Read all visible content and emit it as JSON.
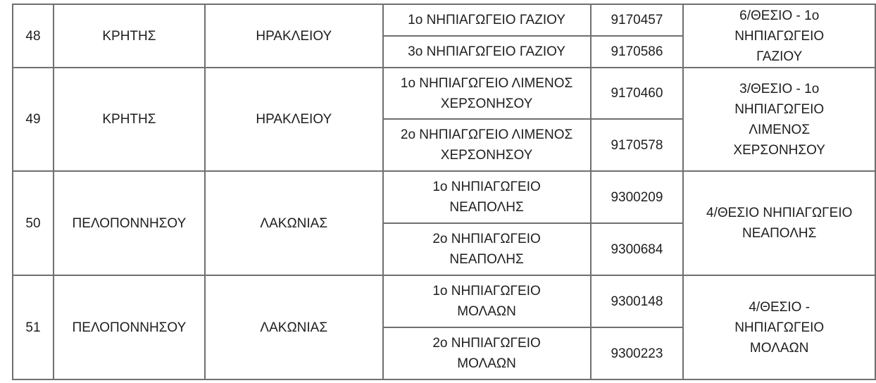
{
  "rows": [
    {
      "no": "48",
      "region": "ΚΡΗΤΗΣ",
      "prefecture": "ΗΡΑΚΛΕΙΟΥ",
      "schools": [
        {
          "name": "1ο ΝΗΠΙΑΓΩΓΕΙΟ ΓΑΖΙΟΥ",
          "code": "9170457"
        },
        {
          "name": "3ο ΝΗΠΙΑΓΩΓΕΙΟ ΓΑΖΙΟΥ",
          "code": "9170586"
        }
      ],
      "result": "6/ΘΕΣΙΟ - 1ο ΝΗΠΙΑΓΩΓΕΙΟ ΓΑΖΙΟΥ"
    },
    {
      "no": "49",
      "region": "ΚΡΗΤΗΣ",
      "prefecture": "ΗΡΑΚΛΕΙΟΥ",
      "schools": [
        {
          "name": "1ο ΝΗΠΙΑΓΩΓΕΙΟ ΛΙΜΕΝΟΣ ΧΕΡΣΟΝΗΣΟΥ",
          "code": "9170460"
        },
        {
          "name": "2ο ΝΗΠΙΑΓΩΓΕΙΟ ΛΙΜΕΝΟΣ ΧΕΡΣΟΝΗΣΟΥ",
          "code": "9170578"
        }
      ],
      "result": "3/ΘΕΣΙΟ - 1ο ΝΗΠΙΑΓΩΓΕΙΟ ΛΙΜΕΝΟΣ ΧΕΡΣΟΝΗΣΟΥ"
    },
    {
      "no": "50",
      "region": "ΠΕΛΟΠΟΝΝΗΣΟΥ",
      "prefecture": "ΛΑΚΩΝΙΑΣ",
      "schools": [
        {
          "name": "1ο ΝΗΠΙΑΓΩΓΕΙΟ ΝΕΑΠΟΛΗΣ",
          "code": "9300209"
        },
        {
          "name": "2ο ΝΗΠΙΑΓΩΓΕΙΟ ΝΕΑΠΟΛΗΣ",
          "code": "9300684"
        }
      ],
      "result": "4/ΘΕΣΙΟ ΝΗΠΙΑΓΩΓΕΙΟ ΝΕΑΠΟΛΗΣ"
    },
    {
      "no": "51",
      "region": "ΠΕΛΟΠΟΝΝΗΣΟΥ",
      "prefecture": "ΛΑΚΩΝΙΑΣ",
      "schools": [
        {
          "name": "1ο ΝΗΠΙΑΓΩΓΕΙΟ ΜΟΛΑΩΝ",
          "code": "9300148"
        },
        {
          "name": "2ο ΝΗΠΙΑΓΩΓΕΙΟ ΜΟΛΑΩΝ",
          "code": "9300223"
        }
      ],
      "result": "4/ΘΕΣΙΟ - ΝΗΠΙΑΓΩΓΕΙΟ ΜΟΛΑΩΝ"
    }
  ]
}
